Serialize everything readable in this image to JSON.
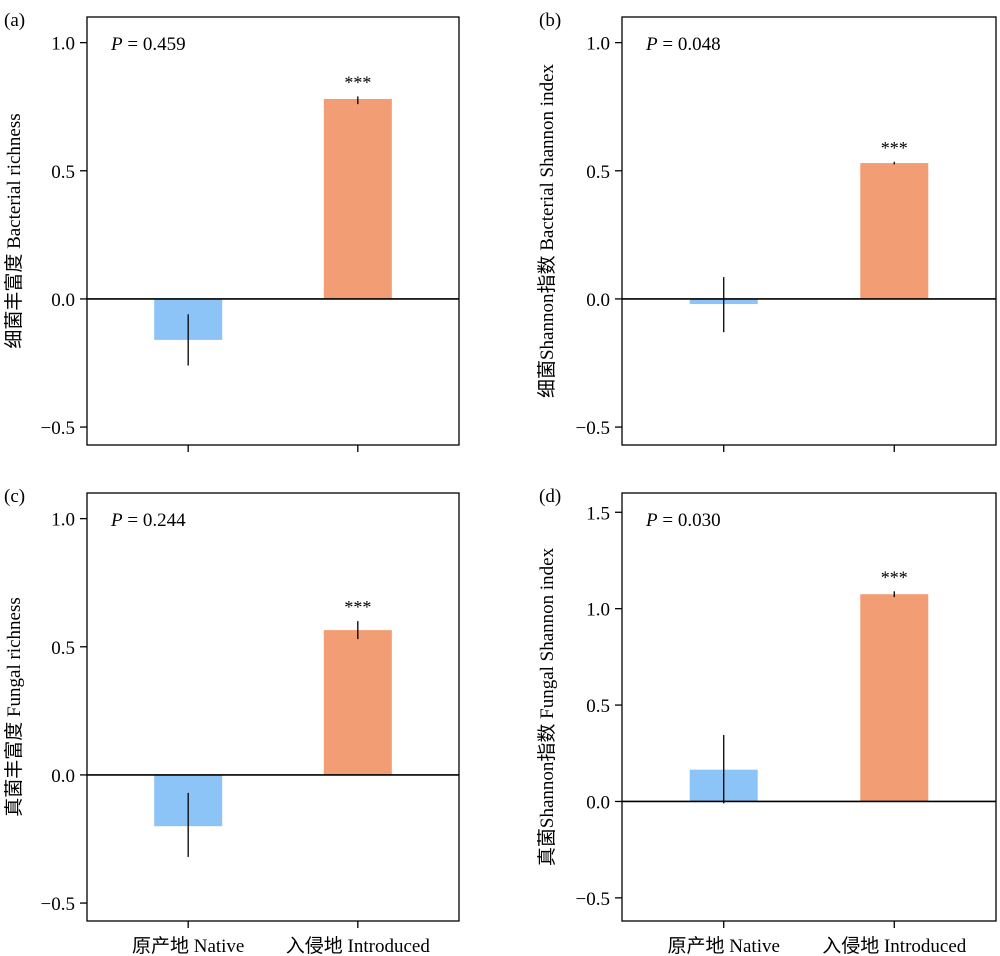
{
  "chart_data": [
    {
      "type": "bar",
      "panel_label": "(a)",
      "ylabel": "细菌丰富度 Bacterial richness",
      "p_prefix": "P",
      "p_value": "= 0.459",
      "categories": [
        "原产地 Native",
        "入侵地 Introduced"
      ],
      "values": [
        -0.16,
        0.78
      ],
      "error_low": [
        -0.26,
        0.76
      ],
      "error_high": [
        -0.06,
        0.79
      ],
      "significance": [
        "",
        "***"
      ],
      "colors": [
        "#8DC4F7",
        "#F29D73"
      ],
      "ylim": [
        -0.57,
        1.1
      ],
      "yticks": [
        -0.5,
        0.0,
        0.5,
        1.0
      ],
      "ytick_labels": [
        "−0.5",
        "0.0",
        "0.5",
        "1.0"
      ],
      "show_x_labels": false
    },
    {
      "type": "bar",
      "panel_label": "(b)",
      "ylabel": "细菌Shannon指数 Bacterial Shannon index",
      "p_prefix": "P",
      "p_value": "= 0.048",
      "categories": [
        "原产地 Native",
        "入侵地 Introduced"
      ],
      "values": [
        -0.02,
        0.53
      ],
      "error_low": [
        -0.13,
        0.525
      ],
      "error_high": [
        0.085,
        0.535
      ],
      "significance": [
        "",
        "***"
      ],
      "colors": [
        "#8DC4F7",
        "#F29D73"
      ],
      "ylim": [
        -0.57,
        1.1
      ],
      "yticks": [
        -0.5,
        0.0,
        0.5,
        1.0
      ],
      "ytick_labels": [
        "−0.5",
        "0.0",
        "0.5",
        "1.0"
      ],
      "show_x_labels": false
    },
    {
      "type": "bar",
      "panel_label": "(c)",
      "ylabel": "真菌丰富度 Fungal richness",
      "p_prefix": "P",
      "p_value": "= 0.244",
      "categories": [
        "原产地 Native",
        "入侵地 Introduced"
      ],
      "values": [
        -0.2,
        0.565
      ],
      "error_low": [
        -0.32,
        0.53
      ],
      "error_high": [
        -0.07,
        0.6
      ],
      "significance": [
        "",
        "***"
      ],
      "colors": [
        "#8DC4F7",
        "#F29D73"
      ],
      "ylim": [
        -0.57,
        1.1
      ],
      "yticks": [
        -0.5,
        0.0,
        0.5,
        1.0
      ],
      "ytick_labels": [
        "−0.5",
        "0.0",
        "0.5",
        "1.0"
      ],
      "show_x_labels": true
    },
    {
      "type": "bar",
      "panel_label": "(d)",
      "ylabel": "真菌Shannon指数 Fungal Shannon index",
      "p_prefix": "P",
      "p_value": "= 0.030",
      "categories": [
        "原产地 Native",
        "入侵地 Introduced"
      ],
      "values": [
        0.165,
        1.075
      ],
      "error_low": [
        -0.01,
        1.06
      ],
      "error_high": [
        0.345,
        1.09
      ],
      "significance": [
        "",
        "***"
      ],
      "colors": [
        "#8DC4F7",
        "#F29D73"
      ],
      "ylim": [
        -0.62,
        1.6
      ],
      "yticks": [
        -0.5,
        0.0,
        0.5,
        1.0,
        1.5
      ],
      "ytick_labels": [
        "−0.5",
        "0.0",
        "0.5",
        "1.0",
        "1.5"
      ],
      "show_x_labels": true
    }
  ]
}
